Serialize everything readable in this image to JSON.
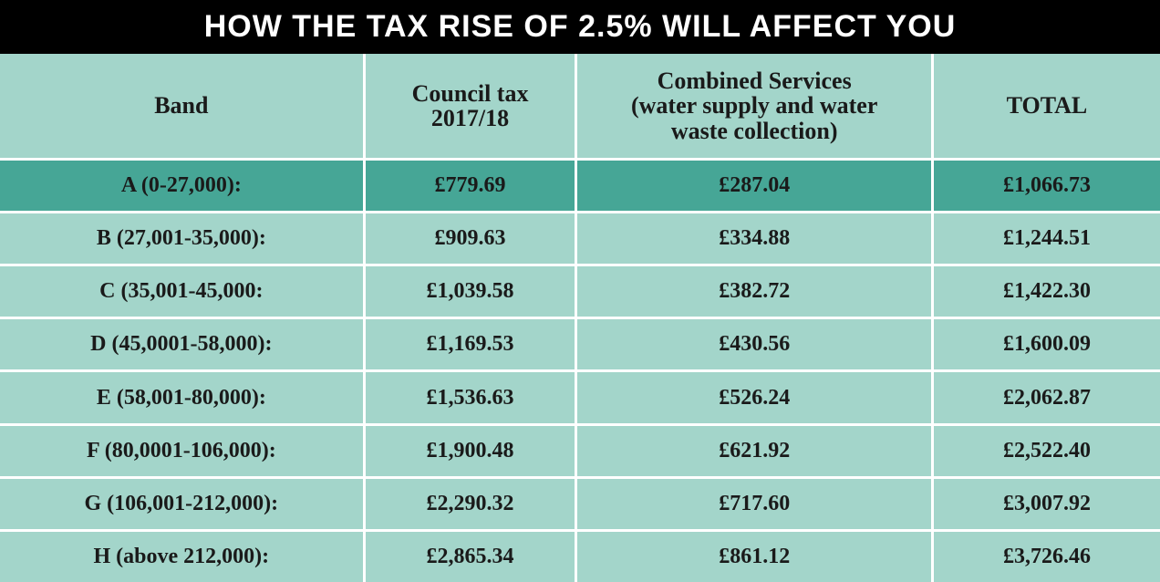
{
  "title": "HOW THE TAX RISE OF 2.5% WILL AFFECT YOU",
  "table": {
    "type": "table",
    "background_color": "#ffffff",
    "title_bg": "#000000",
    "title_fg": "#ffffff",
    "title_fontsize": 34,
    "cell_bg": "#a3d5ca",
    "highlight_bg": "#46a696",
    "border_color": "#ffffff",
    "border_width": 3,
    "text_color": "#1a1a1a",
    "header_fontsize": 26,
    "cell_fontsize": 24,
    "columns": [
      {
        "key": "band",
        "label": "Band",
        "width_pct": 31.5
      },
      {
        "key": "tax",
        "label": "Council tax\n2017/18",
        "width_pct": 18.3
      },
      {
        "key": "comb",
        "label": "Combined Services\n(water supply and water\nwaste collection)",
        "width_pct": 30.7
      },
      {
        "key": "total",
        "label": "TOTAL",
        "width_pct": 19.5
      }
    ],
    "rows": [
      {
        "highlight": true,
        "band": "A (0-27,000):",
        "tax": "£779.69",
        "comb": "£287.04",
        "total": "£1,066.73"
      },
      {
        "highlight": false,
        "band": "B (27,001-35,000):",
        "tax": "£909.63",
        "comb": "£334.88",
        "total": "£1,244.51"
      },
      {
        "highlight": false,
        "band": "C (35,001-45,000:",
        "tax": "£1,039.58",
        "comb": "£382.72",
        "total": "£1,422.30"
      },
      {
        "highlight": false,
        "band": "D (45,0001-58,000):",
        "tax": "£1,169.53",
        "comb": "£430.56",
        "total": "£1,600.09"
      },
      {
        "highlight": false,
        "band": "E (58,001-80,000):",
        "tax": "£1,536.63",
        "comb": "£526.24",
        "total": "£2,062.87"
      },
      {
        "highlight": false,
        "band": "F (80,0001-106,000):",
        "tax": "£1,900.48",
        "comb": "£621.92",
        "total": "£2,522.40"
      },
      {
        "highlight": false,
        "band": "G (106,001-212,000):",
        "tax": "£2,290.32",
        "comb": "£717.60",
        "total": "£3,007.92"
      },
      {
        "highlight": false,
        "band": "H (above 212,000):",
        "tax": "£2,865.34",
        "comb": "£861.12",
        "total": "£3,726.46"
      }
    ]
  }
}
